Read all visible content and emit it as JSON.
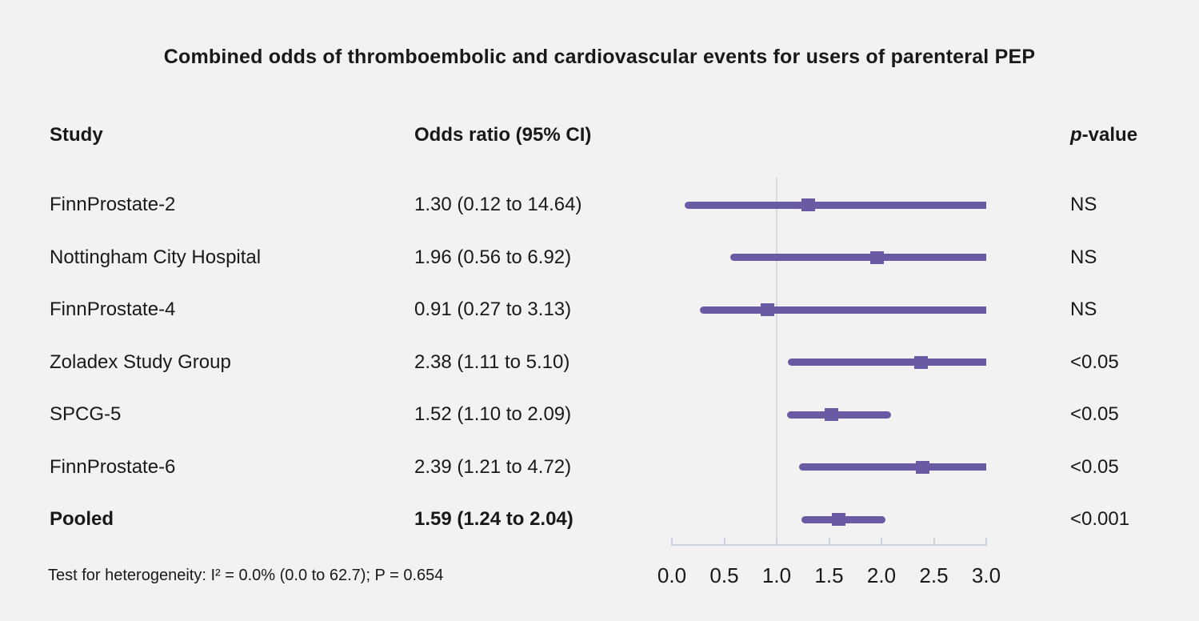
{
  "title": "Combined odds of thromboembolic and cardiovascular events for users of parenteral PEP",
  "columns": {
    "study": "Study",
    "odds_ratio": "Odds ratio (95% CI)",
    "p_value_italic": "p",
    "p_value_rest": "-value"
  },
  "footer": "Test for heterogeneity: I² = 0.0% (0.0 to 62.7); P = 0.654",
  "chart_data": {
    "type": "forest",
    "title": "Combined odds of thromboembolic and cardiovascular events for users of parenteral PEP",
    "axis": {
      "min": 0.0,
      "max": 3.0,
      "tick_labels": [
        "0.0",
        "0.5",
        "1.0",
        "1.5",
        "2.0",
        "2.5",
        "3.0"
      ],
      "reference_line": 1.0
    },
    "rows": [
      {
        "study": "FinnProstate-2",
        "or": 1.3,
        "ci_low": 0.12,
        "ci_high": 14.64,
        "or_label": "1.30 (0.12 to 14.64)",
        "p": "NS",
        "bold": false
      },
      {
        "study": "Nottingham City Hospital",
        "or": 1.96,
        "ci_low": 0.56,
        "ci_high": 6.92,
        "or_label": "1.96 (0.56 to 6.92)",
        "p": "NS",
        "bold": false
      },
      {
        "study": "FinnProstate-4",
        "or": 0.91,
        "ci_low": 0.27,
        "ci_high": 3.13,
        "or_label": "0.91 (0.27 to 3.13)",
        "p": "NS",
        "bold": false
      },
      {
        "study": "Zoladex Study Group",
        "or": 2.38,
        "ci_low": 1.11,
        "ci_high": 5.1,
        "or_label": "2.38 (1.11 to 5.10)",
        "p": "<0.05",
        "bold": false
      },
      {
        "study": "SPCG-5",
        "or": 1.52,
        "ci_low": 1.1,
        "ci_high": 2.09,
        "or_label": "1.52 (1.10 to 2.09)",
        "p": "<0.05",
        "bold": false
      },
      {
        "study": "FinnProstate-6",
        "or": 2.39,
        "ci_low": 1.21,
        "ci_high": 4.72,
        "or_label": "2.39 (1.21 to 4.72)",
        "p": "<0.05",
        "bold": false
      },
      {
        "study": "Pooled",
        "or": 1.59,
        "ci_low": 1.24,
        "ci_high": 2.04,
        "or_label": "1.59 (1.24 to 2.04)",
        "p": "<0.001",
        "bold": true
      }
    ],
    "colors": {
      "ci_bar": "#6a5aa4",
      "marker": "#6a5aa4",
      "reference_line": "#d6dae1",
      "axis": "#cbd2db",
      "background": "#f2f2f3",
      "text": "#191919"
    }
  }
}
